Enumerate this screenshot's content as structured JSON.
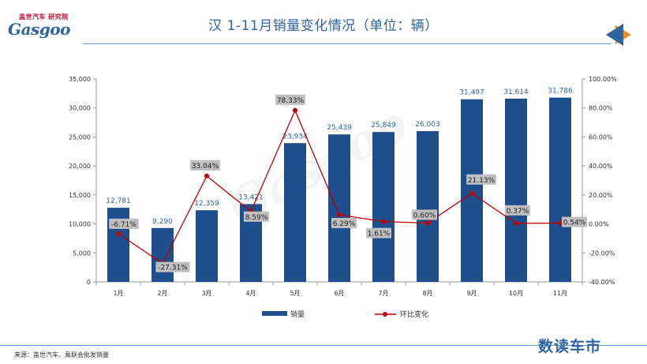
{
  "header": {
    "logo_top": "盖世汽车 研究院",
    "logo_main": "Gasgoo",
    "title": "汉 1-11月销量变化情况（单位：辆）"
  },
  "footer": {
    "source": "来源：盖世汽车、乘联会批发销量",
    "brand": "数读车市"
  },
  "colors": {
    "bar": "#1f4e8c",
    "line": "#c00000",
    "label_box": "#bfbfbf",
    "accent": "#2f64a3"
  },
  "icons": {
    "logo": "gasgoo-logo",
    "nav": "back-arrow-icon"
  },
  "chart_data": {
    "type": "bar",
    "categories": [
      "1月",
      "2月",
      "3月",
      "4月",
      "5月",
      "6月",
      "7月",
      "8月",
      "9月",
      "10月",
      "11月"
    ],
    "series": [
      {
        "name": "销量",
        "type": "bar",
        "axis": "left",
        "values": [
          12781,
          9290,
          12359,
          13421,
          23934,
          25439,
          25849,
          26003,
          31497,
          31614,
          31786
        ],
        "labels": [
          "12,781",
          "9,290",
          "12,359",
          "13,421",
          "23,934",
          "25,439",
          "25,849",
          "26,003",
          "31,497",
          "31,614",
          "31,786"
        ]
      },
      {
        "name": "环比变化",
        "type": "line",
        "axis": "right",
        "values": [
          -6.71,
          -27.31,
          33.04,
          8.59,
          78.33,
          6.29,
          1.61,
          0.6,
          21.13,
          0.37,
          0.54
        ],
        "labels": [
          "-6.71%",
          "-27.31%",
          "33.04%",
          "8.59%",
          "78.33%",
          "6.29%",
          "1.61%",
          "0.60%",
          "21.13%",
          "0.37%",
          "0.54%"
        ]
      }
    ],
    "y_left": {
      "ylim": [
        0,
        35000
      ],
      "ticks": [
        "0",
        "5,000",
        "10,000",
        "15,000",
        "20,000",
        "25,000",
        "30,000",
        "35,000"
      ]
    },
    "y_right": {
      "ylim": [
        -40,
        100
      ],
      "ticks": [
        "-40.00%",
        "-20.00%",
        "0.00%",
        "20.00%",
        "40.00%",
        "60.00%",
        "80.00%",
        "100.00%"
      ]
    },
    "legend": {
      "position": "bottom"
    },
    "grid": false
  }
}
